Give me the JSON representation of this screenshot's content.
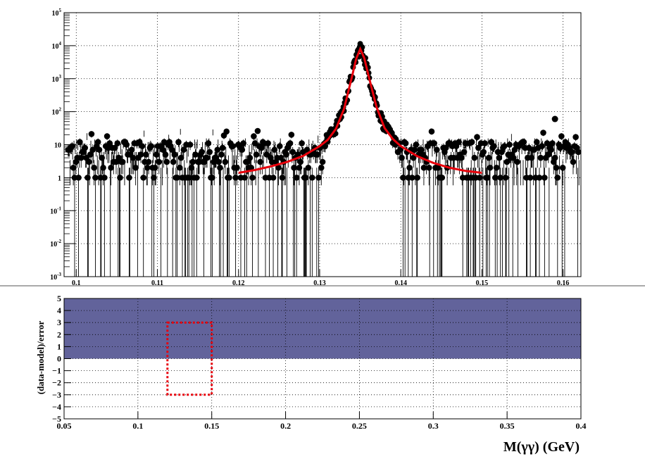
{
  "chart_data": [
    {
      "type": "scatter",
      "panel": "top",
      "title": "",
      "xlabel": "",
      "ylabel": "",
      "x_range": [
        0.0985,
        0.1622
      ],
      "ylim": [
        0.001,
        100000
      ],
      "y_scale": "log",
      "grid": "dotted",
      "x_ticks": [
        "0.1",
        "0.11",
        "0.12",
        "0.13",
        "0.14",
        "0.15",
        "0.16"
      ],
      "x_tick_values": [
        0.1,
        0.11,
        0.12,
        0.13,
        0.14,
        0.15,
        0.16
      ],
      "y_ticks": [
        {
          "value": 0.001,
          "base": "10",
          "exp": "-3"
        },
        {
          "value": 0.01,
          "base": "10",
          "exp": "-2"
        },
        {
          "value": 0.1,
          "base": "10",
          "exp": "-1"
        },
        {
          "value": 1,
          "base": "1",
          "exp": ""
        },
        {
          "value": 10,
          "base": "10",
          "exp": ""
        },
        {
          "value": 100,
          "base": "10",
          "exp": "2"
        },
        {
          "value": 1000,
          "base": "10",
          "exp": "3"
        },
        {
          "value": 10000,
          "base": "10",
          "exp": "4"
        },
        {
          "value": 100000,
          "base": "10",
          "exp": "5"
        }
      ],
      "series": [
        {
          "kind": "data_points",
          "color": "#000000",
          "x_min": 0.099,
          "x_max": 0.162,
          "peak_x": 0.135,
          "peak_y": 8000,
          "outlier": {
            "x": 0.159,
            "y": 60
          },
          "typical_sideband_counts": [
            1,
            10
          ],
          "sideband_gap": [
            0.1305,
            0.1395
          ]
        },
        {
          "kind": "fit_model",
          "color": "#e8000b",
          "points": [
            [
              0.12,
              1.4
            ],
            [
              0.122,
              1.7
            ],
            [
              0.124,
              2.2
            ],
            [
              0.126,
              3.0
            ],
            [
              0.128,
              4.6
            ],
            [
              0.13,
              9.0
            ],
            [
              0.131,
              14
            ],
            [
              0.132,
              30
            ],
            [
              0.133,
              120
            ],
            [
              0.134,
              1200
            ],
            [
              0.1345,
              4000
            ],
            [
              0.135,
              8000
            ],
            [
              0.1355,
              4200
            ],
            [
              0.136,
              1300
            ],
            [
              0.137,
              140
            ],
            [
              0.138,
              32
            ],
            [
              0.139,
              15
            ],
            [
              0.14,
              9.0
            ],
            [
              0.142,
              4.5
            ],
            [
              0.144,
              2.8
            ],
            [
              0.146,
              2.0
            ],
            [
              0.148,
              1.6
            ],
            [
              0.15,
              1.4
            ]
          ]
        }
      ]
    },
    {
      "type": "area",
      "panel": "bottom",
      "xlabel": "M(γγ) (GeV)",
      "ylabel": "(data-model)/error",
      "xlim": [
        0.05,
        0.4
      ],
      "ylim": [
        -5,
        5
      ],
      "grid": "dotted",
      "x_ticks": [
        "0.05",
        "0.1",
        "0.15",
        "0.2",
        "0.25",
        "0.3",
        "0.35",
        "0.4"
      ],
      "x_tick_values": [
        0.05,
        0.1,
        0.15,
        0.2,
        0.25,
        0.3,
        0.35,
        0.4
      ],
      "y_ticks": [
        "−5",
        "−4",
        "−3",
        "−2",
        "−1",
        "0",
        "1",
        "2",
        "3",
        "4",
        "5"
      ],
      "y_tick_values": [
        -5,
        -4,
        -3,
        -2,
        -1,
        0,
        1,
        2,
        3,
        4,
        5
      ],
      "fill": {
        "from": 0,
        "to": 5,
        "x_from": 0.05,
        "x_to": 0.4,
        "color": "#62639b"
      },
      "annotation": {
        "kind": "dashed-box",
        "x_from": 0.12,
        "x_to": 0.15,
        "y_from": -3,
        "y_to": 3,
        "color": "#e8000b"
      }
    }
  ]
}
